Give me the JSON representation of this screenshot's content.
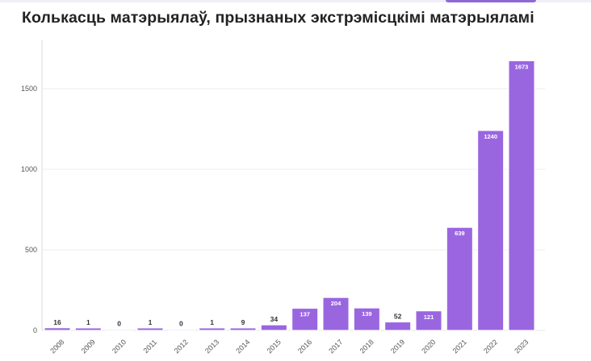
{
  "chart_data": {
    "type": "bar",
    "title": "Колькасць матэрыялаў, прызнаных экстрэмісцкімі матэрыяламі",
    "xlabel": "",
    "ylabel": "",
    "categories": [
      "2008",
      "2009",
      "2010",
      "2011",
      "2012",
      "2013",
      "2014",
      "2015",
      "2016",
      "2017",
      "2018",
      "2019",
      "2020",
      "2021",
      "2022",
      "2023"
    ],
    "values": [
      16,
      1,
      0,
      1,
      0,
      1,
      9,
      34,
      137,
      204,
      139,
      52,
      121,
      639,
      1240,
      1673
    ],
    "ylim": [
      0,
      1800
    ],
    "yticks": [
      0,
      500,
      1000,
      1500
    ],
    "grid": true,
    "legend": "none",
    "bar_color": "#9a66e0",
    "bar_border": "#ffffff",
    "label_color_outside": "#333333",
    "label_color_inside": "#ffffff"
  }
}
